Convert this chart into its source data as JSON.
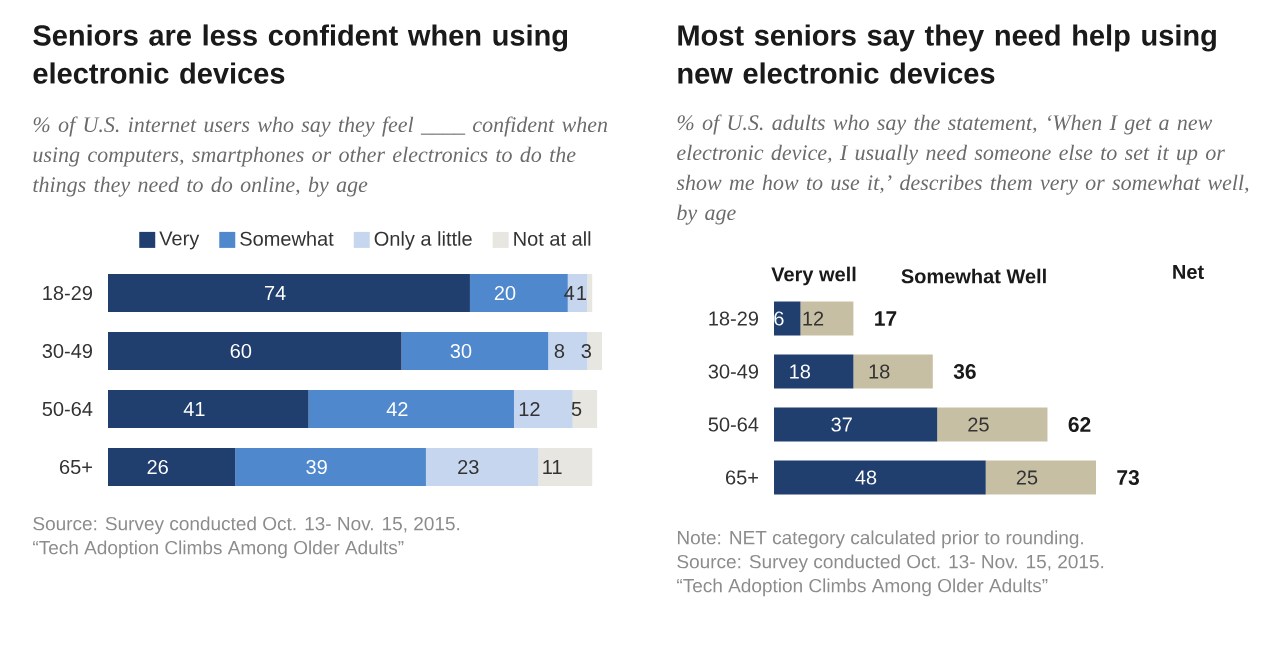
{
  "chart_data": [
    {
      "type": "bar",
      "orientation": "horizontal",
      "stacked": true,
      "title": "Seniors are less confident when using electronic devices",
      "subtitle": "% of U.S. internet users who say they feel ____ confident when using computers, smartphones or other electronics to do the things they need to do online, by age",
      "categories": [
        "18-29",
        "30-49",
        "50-64",
        "65+"
      ],
      "series": [
        {
          "name": "Very",
          "color": "#213f6e",
          "values": [
            74,
            60,
            41,
            26
          ],
          "value_labels": [
            "74",
            "60",
            "41",
            "26"
          ]
        },
        {
          "name": "Somewhat",
          "color": "#4f88cd",
          "values": [
            20,
            30,
            42,
            39
          ],
          "value_labels": [
            "20",
            "30",
            "42",
            "39"
          ]
        },
        {
          "name": "Only a little",
          "color": "#c5d6ee",
          "values": [
            4,
            8,
            12,
            23
          ],
          "value_labels": [
            "4",
            "8",
            "12",
            "23"
          ]
        },
        {
          "name": "Not at all",
          "color": "#e8e6e0",
          "values": [
            1,
            3,
            5,
            11
          ],
          "value_labels": [
            "1",
            "3",
            "5",
            "11"
          ]
        }
      ],
      "tick_labels": "y",
      "legend": "top",
      "annotations": [
        "Source: Survey conducted Oct. 13- Nov. 15, 2015.",
        "“Tech Adoption Climbs Among Older Adults”"
      ]
    },
    {
      "type": "bar",
      "orientation": "horizontal",
      "stacked": true,
      "title": "Most seniors say they need help using new electronic devices",
      "subtitle": "% of U.S. adults who say the statement, ‘When I get a new electronic device, I usually need someone else to set it up or show me how to use it,’ describes them very or somewhat well, by age",
      "categories": [
        "18-29",
        "30-49",
        "50-64",
        "65+"
      ],
      "series": [
        {
          "name": "Very well",
          "color": "#213f6e",
          "values": [
            6,
            18,
            37,
            48
          ],
          "value_labels": [
            "6",
            "18",
            "37",
            "48"
          ]
        },
        {
          "name": "Somewhat Well",
          "color": "#c7bfa3",
          "values": [
            12,
            18,
            25,
            25
          ],
          "value_labels": [
            "12",
            "18",
            "25",
            "25"
          ]
        }
      ],
      "tick_labels": "y",
      "legend": "top",
      "totals": [
        "17",
        "36",
        "62",
        "73"
      ],
      "annotations": [
        "Net",
        "Note: NET category calculated prior to rounding.",
        "Source: Survey conducted Oct. 13- Nov. 15, 2015.",
        "“Tech Adoption Climbs Among Older Adults”"
      ]
    }
  ]
}
